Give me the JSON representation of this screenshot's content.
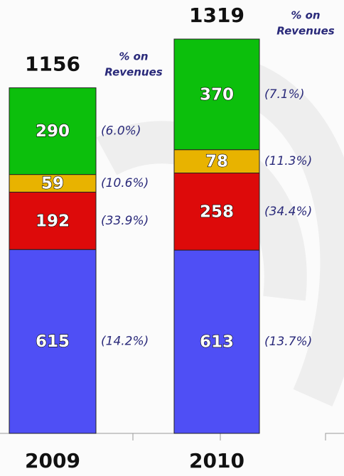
{
  "chart_data": {
    "type": "stacked_bar",
    "categories": [
      "2009",
      "2010"
    ],
    "series": [
      {
        "color": "#4f4ff5",
        "values": [
          615,
          613
        ],
        "notes": [
          "(14.2%)",
          "(13.7%)"
        ]
      },
      {
        "color": "#dd0a0a",
        "values": [
          192,
          258
        ],
        "notes": [
          "(33.9%)",
          "(34.4%)"
        ]
      },
      {
        "color": "#e8b300",
        "values": [
          59,
          78
        ],
        "notes": [
          "(10.6%)",
          "(11.3%)"
        ]
      },
      {
        "color": "#0cbf0c",
        "values": [
          290,
          370
        ],
        "notes": [
          "(6.0%)",
          "(7.1%)"
        ]
      }
    ],
    "totals": [
      "1156",
      "1319"
    ],
    "note_lines": [
      "% on",
      "Revenues"
    ]
  }
}
